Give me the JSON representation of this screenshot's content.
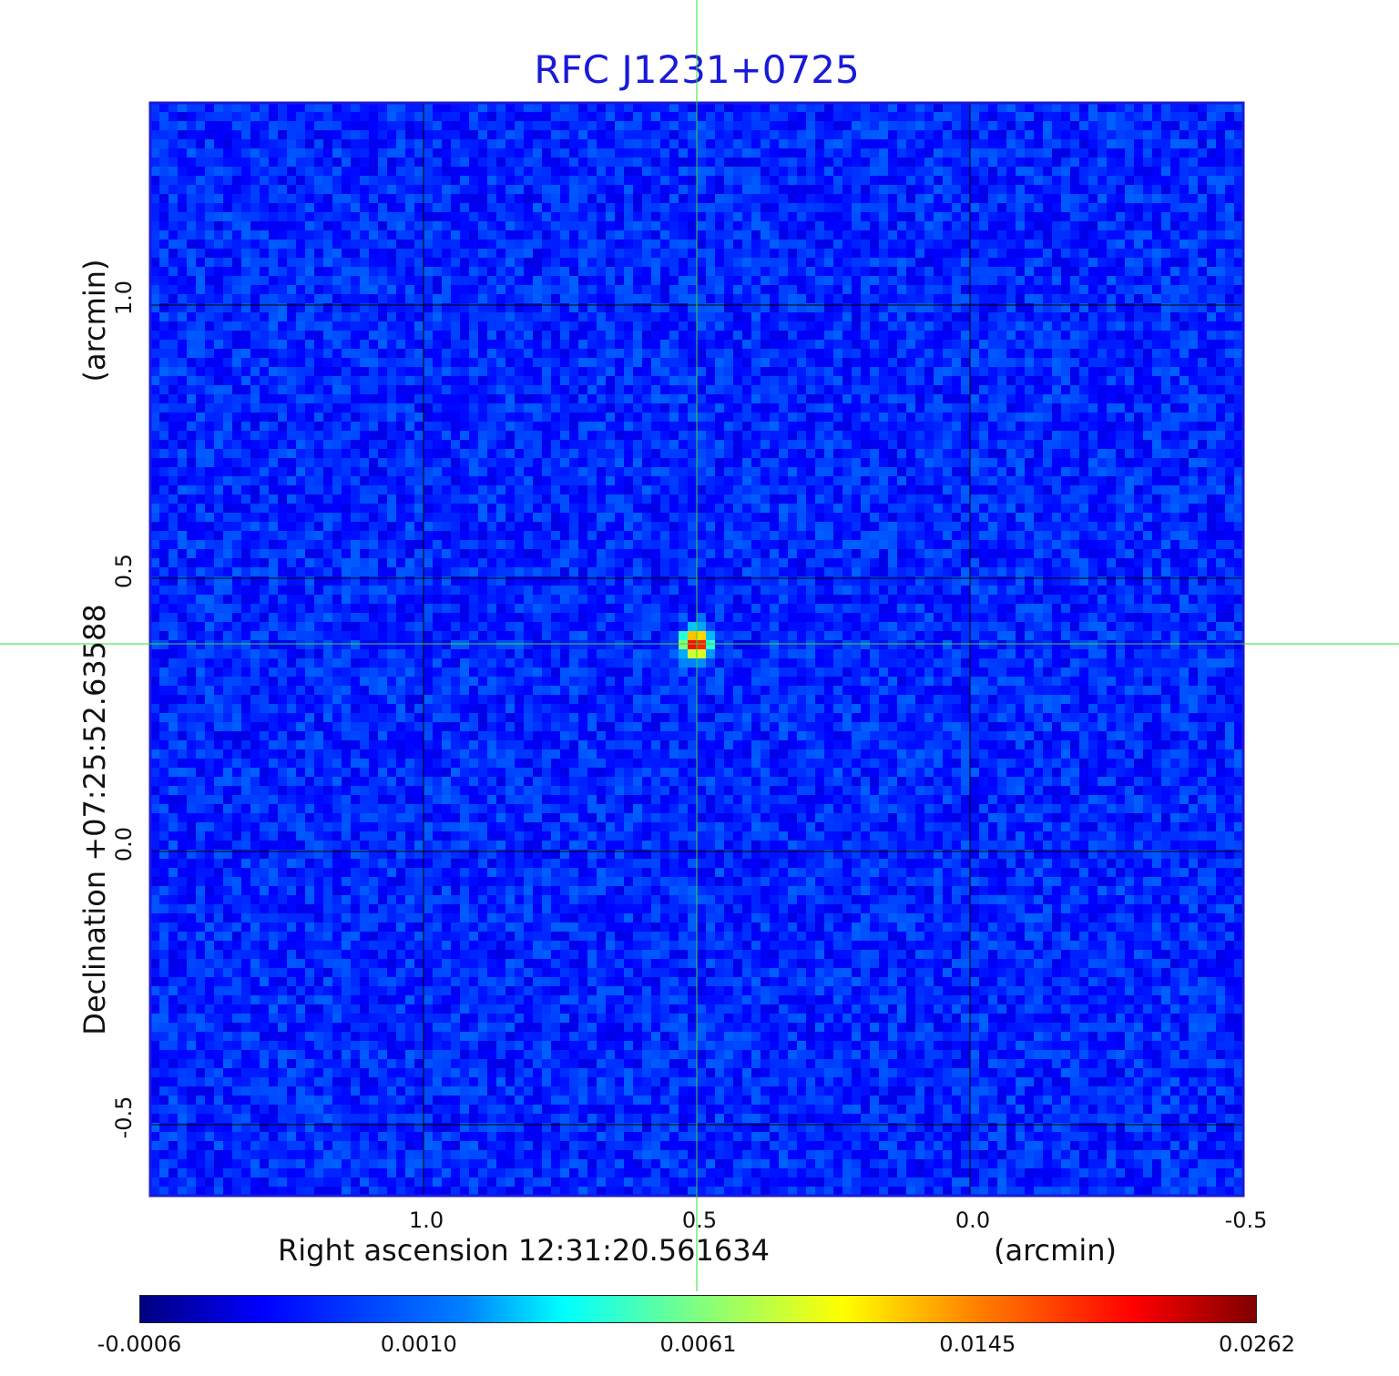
{
  "chart_data": {
    "type": "heatmap",
    "title": "RFC J1231+0725",
    "xlabel_coord": "Right ascension  12:31:20.561634",
    "xlabel_unit": "(arcmin)",
    "ylabel_coord": "Declination  +07:25:52.63588",
    "ylabel_unit": "(arcmin)",
    "x_ticks": [
      "1.0",
      "0.5",
      "0.0",
      "-0.5"
    ],
    "x_tick_values": [
      1.0,
      0.5,
      0.0,
      -0.5
    ],
    "xlim": [
      1.5,
      -0.5
    ],
    "y_ticks": [
      "1.0",
      "0.5",
      "0.0",
      "-0.5"
    ],
    "y_tick_values": [
      1.0,
      0.5,
      0.0,
      -0.5
    ],
    "ylim": [
      -0.63,
      1.37
    ],
    "grid": true,
    "crosshair": {
      "x": 0.5,
      "y": 0.38
    },
    "source_peak": {
      "x": 0.5,
      "y": 0.38
    },
    "colormap": "jet",
    "colorbar_ticks": [
      "-0.0006",
      "0.0010",
      "0.0061",
      "0.0145",
      "0.0262"
    ],
    "colorbar_tick_values": [
      -0.0006,
      0.001,
      0.0061,
      0.0145,
      0.0262
    ],
    "colors": {
      "title": "#1a1ad8",
      "background_noise": "#1e5af0",
      "grid": "#000000",
      "crosshair": "#33dd33",
      "frame": "#1a1ad8"
    }
  }
}
